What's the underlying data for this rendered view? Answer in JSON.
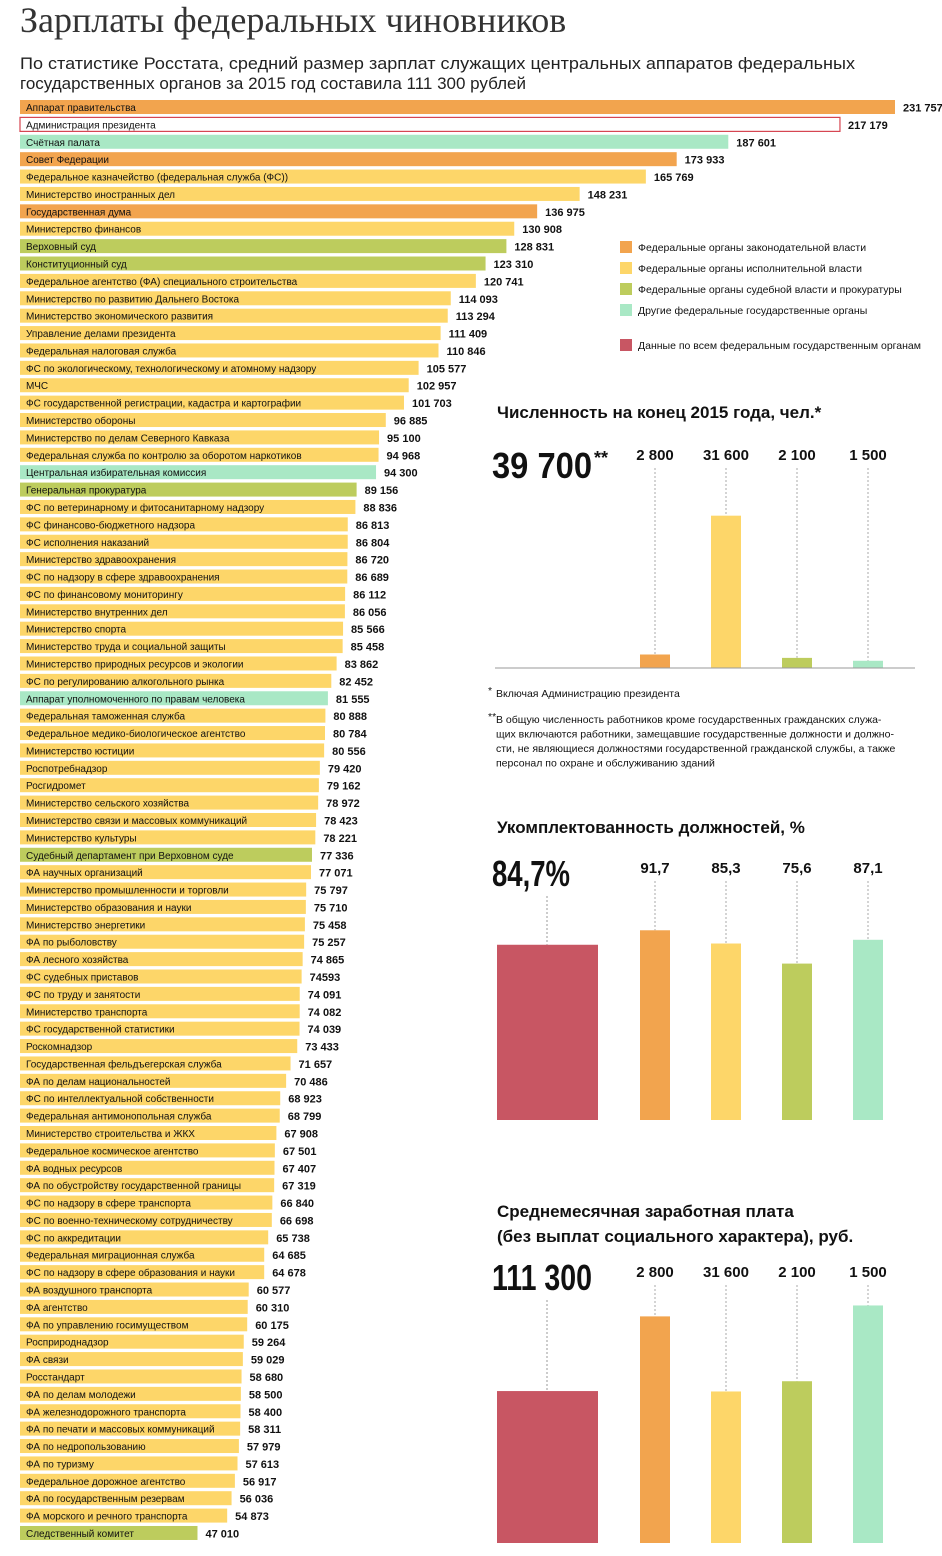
{
  "header": {
    "title": "Зарплаты федеральных чиновников",
    "subtitle": [
      "По статистике Росстата, средний размер зарплат служащих центральных аппаратов федеральных",
      "государственных органов за 2015 год составила 111 300 рублей"
    ]
  },
  "chart_data": [
    {
      "type": "bar",
      "orientation": "horizontal",
      "categories": [
        "Аппарат правительства",
        "Администрация президента",
        "Счётная палата",
        "Совет Федерации",
        "Федеральное казначейство (федеральная служба (ФС))",
        "Министерство иностранных дел",
        "Государственная дума",
        "Министерство финансов",
        "Верховный суд",
        "Конституционный суд",
        "Федеральное агентство (ФА) специального строительства",
        "Министерство по развитию Дальнего Востока",
        "Министерство экономического развития",
        "Управление делами президента",
        "Федеральная налоговая служба",
        "ФС по экологическому, технологическому и атомному надзору",
        "МЧС",
        "ФС государственной регистрации, кадастра и картографии",
        "Министерство обороны",
        "Министерство по делам Северного Кавказа",
        "Федеральная служба по контролю за оборотом наркотиков",
        "Центральная избирательная комиссия",
        "Генеральная прокуратура",
        "ФС по ветеринарному и фитосанитарному надзору",
        "ФС финансово-бюджетного надзора",
        "ФС исполнения наказаний",
        "Министерство здравоохранения",
        "ФС по надзору в сфере здравоохранения",
        "ФС по финансовому мониторингу",
        "Министерство внутренних дел",
        "Министерство спорта",
        "Министерство труда и социальной защиты",
        "Министерство природных ресурсов и экологии",
        "ФС по регулированию алкогольного рынка",
        "Аппарат уполномоченного по правам человека",
        "Федеральная таможенная служба",
        "Федеральное медико-биологическое агентство",
        "Министерство юстиции",
        "Роспотребнадзор",
        "Росгидромет",
        "Министерство сельского хозяйства",
        "Министерство связи и массовых коммуникаций",
        "Министерство культуры",
        "Судебный департамент при Верховном суде",
        "ФА научных организаций",
        "Министерство промышленности и торговли",
        "Министерство образования и науки",
        "Министерство энергетики",
        "ФА по рыболовству",
        "ФА лесного хозяйства",
        "ФС судебных приставов",
        "ФС по труду и занятости",
        "Министерство транспорта",
        "ФС государственной статистики",
        "Роскомнадзор",
        "Государственная фельдъегерская служба",
        "ФА по делам национальностей",
        "ФС по интеллектуальной собственности",
        "Федеральная антимонопольная служба",
        "Министерство строительства и ЖКХ",
        "Федеральное космическое агентство",
        "ФА водных ресурсов",
        "ФА по обустройству государственной границы",
        "ФС по надзору в сфере транспорта",
        "ФС по военно-техническому сотрудничеству",
        "ФС по аккредитации",
        "Федеральная миграционная служба",
        "ФС по надзору в сфере образования и науки",
        "ФА воздушного транспорта",
        "ФА агентство",
        "ФА по управлению госимуществом",
        "Росприроднадзор",
        "ФА связи",
        "Росстандарт",
        "ФА по делам молодежи",
        "ФА железнодорожного транспорта",
        "ФА по печати и массовых коммуникаций",
        "ФА по недропользованию",
        "ФА по туризму",
        "Федеральное дорожное агентство",
        "ФА по государственным резервам",
        "ФА морского и речного транспорта",
        "Следственный комитет"
      ],
      "values": [
        231757,
        217179,
        187601,
        173933,
        165769,
        148231,
        136975,
        130908,
        128831,
        123310,
        120741,
        114093,
        113294,
        111409,
        110846,
        105577,
        102957,
        101703,
        96885,
        95100,
        94968,
        94300,
        89156,
        88836,
        86813,
        86804,
        86720,
        86689,
        86112,
        86056,
        85566,
        85458,
        83862,
        82452,
        81555,
        80888,
        80784,
        80556,
        79420,
        79162,
        78972,
        78423,
        78221,
        77336,
        77071,
        75797,
        75710,
        75458,
        75257,
        74865,
        74593,
        74091,
        74082,
        74039,
        73433,
        71657,
        70486,
        68923,
        68799,
        67908,
        67501,
        67407,
        67319,
        66840,
        66698,
        65738,
        64685,
        64678,
        60577,
        60310,
        60175,
        59264,
        59029,
        58680,
        58500,
        58400,
        58311,
        57979,
        57613,
        56917,
        56036,
        54873,
        47010
      ],
      "value_labels": [
        "231 757",
        "217 179",
        "187 601",
        "173 933",
        "165 769",
        "148 231",
        "136 975",
        "130 908",
        "128 831",
        "123 310",
        "120 741",
        "114 093",
        "113 294",
        "111 409",
        "110 846",
        "105 577",
        "102 957",
        "101 703",
        "96 885",
        "95 100",
        "94 968",
        "94 300",
        "89 156",
        "88 836",
        "86 813",
        "86 804",
        "86 720",
        "86 689",
        "86 112",
        "86 056",
        "85 566",
        "85 458",
        "83 862",
        "82 452",
        "81 555",
        "80 888",
        "80 784",
        "80 556",
        "79 420",
        "79 162",
        "78 972",
        "78 423",
        "78 221",
        "77 336",
        "77 071",
        "75 797",
        "75 710",
        "75 458",
        "75 257",
        "74 865",
        "74593",
        "74 091",
        "74 082",
        "74 039",
        "73 433",
        "71 657",
        "70 486",
        "68 923",
        "68 799",
        "67 908",
        "67 501",
        "67 407",
        "67 319",
        "66 840",
        "66 698",
        "65 738",
        "64 685",
        "64 678",
        "60 577",
        "60 310",
        "60 175",
        "59 264",
        "59 029",
        "58 680",
        "58 500",
        "58 400",
        "58 311",
        "57 979",
        "57 613",
        "56 917",
        "56 036",
        "54 873",
        "47 010"
      ],
      "colors": [
        "#f2a44e",
        "#ffffff",
        "#a9e8c5",
        "#f2a44e",
        "#fdd669",
        "#fdd669",
        "#f2a44e",
        "#fdd669",
        "#bdcc5d",
        "#bdcc5d",
        "#fdd669",
        "#fdd669",
        "#fdd669",
        "#fdd669",
        "#fdd669",
        "#fdd669",
        "#fdd669",
        "#fdd669",
        "#fdd669",
        "#fdd669",
        "#fdd669",
        "#a9e8c5",
        "#bdcc5d",
        "#fdd669",
        "#fdd669",
        "#fdd669",
        "#fdd669",
        "#fdd669",
        "#fdd669",
        "#fdd669",
        "#fdd669",
        "#fdd669",
        "#fdd669",
        "#fdd669",
        "#a9e8c5",
        "#fdd669",
        "#fdd669",
        "#fdd669",
        "#fdd669",
        "#fdd669",
        "#fdd669",
        "#fdd669",
        "#fdd669",
        "#bdcc5d",
        "#fdd669",
        "#fdd669",
        "#fdd669",
        "#fdd669",
        "#fdd669",
        "#fdd669",
        "#fdd669",
        "#fdd669",
        "#fdd669",
        "#fdd669",
        "#fdd669",
        "#fdd669",
        "#fdd669",
        "#fdd669",
        "#fdd669",
        "#fdd669",
        "#fdd669",
        "#fdd669",
        "#fdd669",
        "#fdd669",
        "#fdd669",
        "#fdd669",
        "#fdd669",
        "#fdd669",
        "#fdd669",
        "#fdd669",
        "#fdd669",
        "#fdd669",
        "#fdd669",
        "#fdd669",
        "#fdd669",
        "#fdd669",
        "#fdd669",
        "#fdd669",
        "#fdd669",
        "#fdd669",
        "#fdd669",
        "#fdd669",
        "#bdcc5d"
      ],
      "highlight": {
        "category": "Администрация президента",
        "color": "#d64550"
      },
      "legend": [
        {
          "name": "Федеральные органы законодательной власти",
          "color": "#f2a44e"
        },
        {
          "name": "Федеральные органы исполнительной власти",
          "color": "#fdd669"
        },
        {
          "name": "Федеральные органы судебной власти и прокуратуры",
          "color": "#bdcc5d"
        },
        {
          "name": "Другие федеральные государственные органы",
          "color": "#a9e8c5"
        },
        {
          "name": "Данные по всем федеральным государственным органам",
          "color": "#c85663"
        }
      ]
    },
    {
      "type": "column",
      "title": [
        "Численность на конец 2015 года, чел.*"
      ],
      "total": 39700,
      "total_label": "39 700",
      "total_note": "**",
      "values": [
        2800,
        31600,
        2100,
        1500
      ],
      "value_labels": [
        "2 800",
        "31 600",
        "2 100",
        "1 500"
      ],
      "colors": [
        "#f2a44e",
        "#fdd669",
        "#bdcc5d",
        "#a9e8c5"
      ],
      "ylim": [
        0,
        39000
      ],
      "notes": [
        {
          "mark": "*",
          "lines": [
            "Включая Администрацию президента"
          ]
        },
        {
          "mark": "**",
          "lines": [
            "В общую численность работников кроме государственных гражданских служа-",
            "щих включаются работники, замещавшие государственные должности и должно-",
            "сти, не являющиеся должностями государственной гражданской службы, а также",
            "персонал по охране и обслуживанию зданий"
          ]
        }
      ]
    },
    {
      "type": "column",
      "title": [
        "Укомплектованность должностей, %"
      ],
      "total": 84.7,
      "total_label": "84,7%",
      "total_color": "#c85663",
      "values": [
        91.7,
        85.3,
        75.6,
        87.1
      ],
      "value_labels": [
        "91,7",
        "85,3",
        "75,6",
        "87,1"
      ],
      "colors": [
        "#f2a44e",
        "#fdd669",
        "#bdcc5d",
        "#a9e8c5"
      ],
      "ylim": [
        0,
        116
      ]
    },
    {
      "type": "column",
      "title": [
        "Среднемесячная заработная плата",
        "(без выплат социального характера), руб."
      ],
      "total": 111300,
      "total_label": "111 300",
      "total_color": "#c85663",
      "values": [
        166000,
        111000,
        118500,
        174000
      ],
      "column_labels": [
        "2 800",
        "31 600",
        "2 100",
        "1 500"
      ],
      "colors": [
        "#f2a44e",
        "#fdd669",
        "#bdcc5d",
        "#a9e8c5"
      ],
      "ylim": [
        0,
        178000
      ]
    }
  ]
}
